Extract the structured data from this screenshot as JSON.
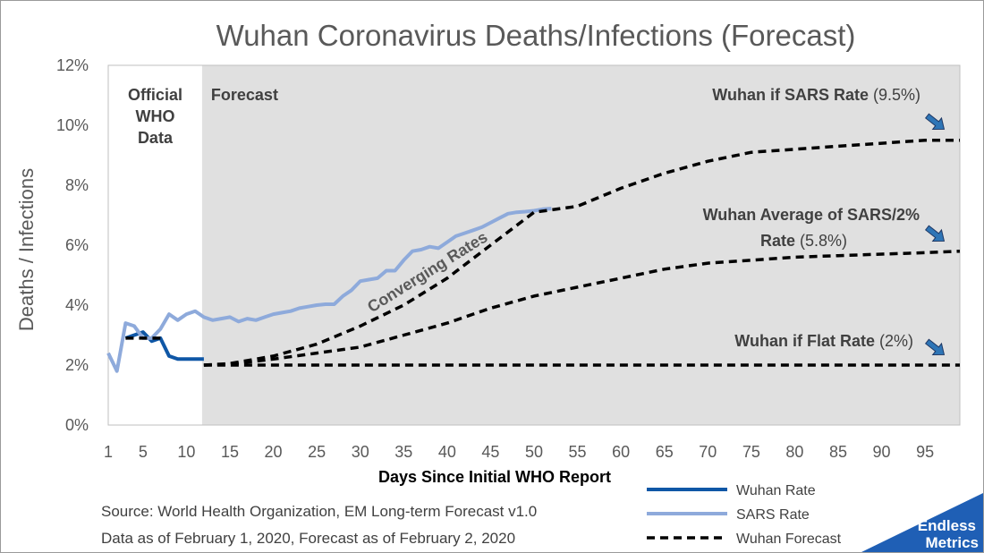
{
  "chart_data": {
    "type": "line",
    "title": "Wuhan Coronavirus Deaths/Infections (Forecast)",
    "xlabel": "Days Since Initial WHO Report",
    "ylabel": "Deaths / Infections",
    "xlim": [
      1,
      99
    ],
    "ylim": [
      0,
      0.12
    ],
    "x_ticks": [
      "1",
      "5",
      "10",
      "15",
      "20",
      "25",
      "30",
      "35",
      "40",
      "45",
      "50",
      "55",
      "60",
      "65",
      "70",
      "75",
      "80",
      "85",
      "90",
      "95"
    ],
    "x_tick_values": [
      1,
      5,
      10,
      15,
      20,
      25,
      30,
      35,
      40,
      45,
      50,
      55,
      60,
      65,
      70,
      75,
      80,
      85,
      90,
      95
    ],
    "y_ticks": [
      "0%",
      "2%",
      "4%",
      "6%",
      "8%",
      "10%",
      "12%"
    ],
    "y_tick_values": [
      0,
      0.02,
      0.04,
      0.06,
      0.08,
      0.1,
      0.12
    ],
    "grid": false,
    "legend_position": "bottom-right",
    "regions": [
      {
        "label_lines": [
          "Official",
          "WHO",
          "Data"
        ],
        "x_range": [
          1,
          11.8
        ],
        "color": "#ffffff"
      },
      {
        "label_lines": [
          "Forecast"
        ],
        "x_range": [
          11.8,
          99
        ],
        "color": "#e0e0e0"
      }
    ],
    "series": [
      {
        "name": "Wuhan Rate",
        "color": "#0f57a6",
        "style": "solid",
        "x": [
          3,
          4,
          5,
          6,
          7,
          8,
          9,
          10,
          11,
          12
        ],
        "y": [
          0.029,
          0.03,
          0.031,
          0.028,
          0.029,
          0.023,
          0.022,
          0.022,
          0.022,
          0.022
        ]
      },
      {
        "name": "SARS Rate",
        "color": "#8eaadb",
        "style": "solid",
        "x": [
          1,
          2,
          3,
          4,
          5,
          6,
          7,
          8,
          9,
          10,
          11,
          12,
          13,
          14,
          15,
          16,
          17,
          18,
          19,
          20,
          21,
          22,
          23,
          24,
          25,
          26,
          27,
          28,
          29,
          30,
          31,
          32,
          33,
          34,
          35,
          36,
          37,
          38,
          39,
          40,
          41,
          42,
          43,
          44,
          45,
          46,
          47,
          48,
          49,
          50,
          51,
          52
        ],
        "y": [
          0.024,
          0.018,
          0.034,
          0.033,
          0.029,
          0.029,
          0.032,
          0.037,
          0.035,
          0.037,
          0.038,
          0.036,
          0.035,
          0.0355,
          0.036,
          0.0345,
          0.0355,
          0.035,
          0.036,
          0.037,
          0.0375,
          0.038,
          0.039,
          0.0395,
          0.04,
          0.0403,
          0.0403,
          0.043,
          0.045,
          0.048,
          0.0485,
          0.049,
          0.0515,
          0.0515,
          0.055,
          0.058,
          0.0585,
          0.0595,
          0.059,
          0.061,
          0.063,
          0.064,
          0.065,
          0.066,
          0.0675,
          0.069,
          0.0705,
          0.071,
          0.0712,
          0.0715,
          0.072,
          0.0722
        ]
      },
      {
        "name": "Wuhan Forecast",
        "color": "#000000",
        "style": "dashed",
        "segments": [
          {
            "x": [
              3,
              4,
              5,
              6,
              7
            ],
            "y": [
              0.029,
              0.029,
              0.029,
              0.029,
              0.029
            ]
          },
          {
            "x": [
              12,
              15,
              20,
              25,
              30,
              35,
              40,
              45,
              50,
              55,
              60,
              65,
              70,
              75,
              80,
              85,
              90,
              95,
              99
            ],
            "y": [
              0.02,
              0.0205,
              0.023,
              0.027,
              0.033,
              0.04,
              0.049,
              0.06,
              0.071,
              0.073,
              0.079,
              0.084,
              0.088,
              0.091,
              0.092,
              0.093,
              0.094,
              0.095,
              0.095
            ]
          },
          {
            "x": [
              12,
              15,
              20,
              25,
              30,
              35,
              40,
              45,
              50,
              55,
              60,
              65,
              70,
              75,
              80,
              85,
              90,
              95,
              99
            ],
            "y": [
              0.02,
              0.0203,
              0.022,
              0.024,
              0.026,
              0.03,
              0.034,
              0.039,
              0.043,
              0.046,
              0.049,
              0.052,
              0.054,
              0.055,
              0.056,
              0.0565,
              0.057,
              0.0575,
              0.058
            ]
          },
          {
            "x": [
              12,
              99
            ],
            "y": [
              0.02,
              0.02
            ]
          }
        ]
      }
    ],
    "annotations": [
      {
        "bold": "Wuhan if SARS Rate",
        "value": "(9.5%)"
      },
      {
        "bold": "Wuhan Average of SARS/2%",
        "bold2": "Rate",
        "value": "(5.8%)"
      },
      {
        "bold": "Wuhan if Flat Rate",
        "value": "(2%)"
      },
      {
        "text": "Converging Rates"
      }
    ]
  },
  "source": {
    "line1": "Source: World Health Organization, EM Long-term Forecast v1.0",
    "line2": "Data as of February 1, 2020, Forecast as of February 2, 2020"
  },
  "logo": {
    "line1": "Endless",
    "line2": "Metrics",
    "color": "#1f5fb5"
  },
  "colors": {
    "forecast_region": "#e0e0e0",
    "arrow_fill": "#2e75b6"
  }
}
